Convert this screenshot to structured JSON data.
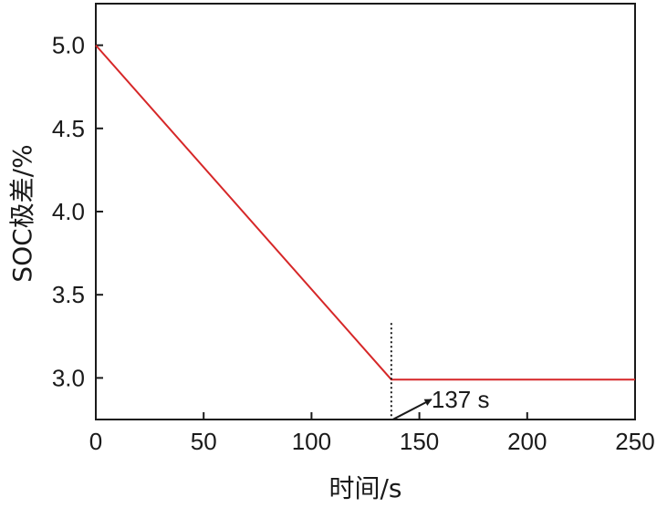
{
  "chart_data": {
    "type": "line",
    "title": "",
    "xlabel": "时间/s",
    "ylabel": "SOC极差/%",
    "xlim": [
      0,
      250
    ],
    "ylim": [
      2.75,
      5.25
    ],
    "xticks": [
      0,
      50,
      100,
      150,
      200,
      250
    ],
    "xtick_labels": [
      "0",
      "50",
      "100",
      "150",
      "200",
      "250"
    ],
    "yticks": [
      3.0,
      3.5,
      4.0,
      4.5,
      5.0
    ],
    "ytick_labels": [
      "3.0",
      "3.5",
      "4.0",
      "4.5",
      "5.0"
    ],
    "grid": false,
    "series": [
      {
        "x": [
          0,
          137,
          250
        ],
        "y": [
          5.0,
          2.99,
          2.99
        ],
        "color": "#d62728"
      }
    ],
    "annotations": [
      {
        "text": "137 s",
        "x": 137,
        "y": 2.74,
        "type": "arrow-label",
        "vline_at": 137,
        "vline_top": 3.33
      }
    ]
  }
}
